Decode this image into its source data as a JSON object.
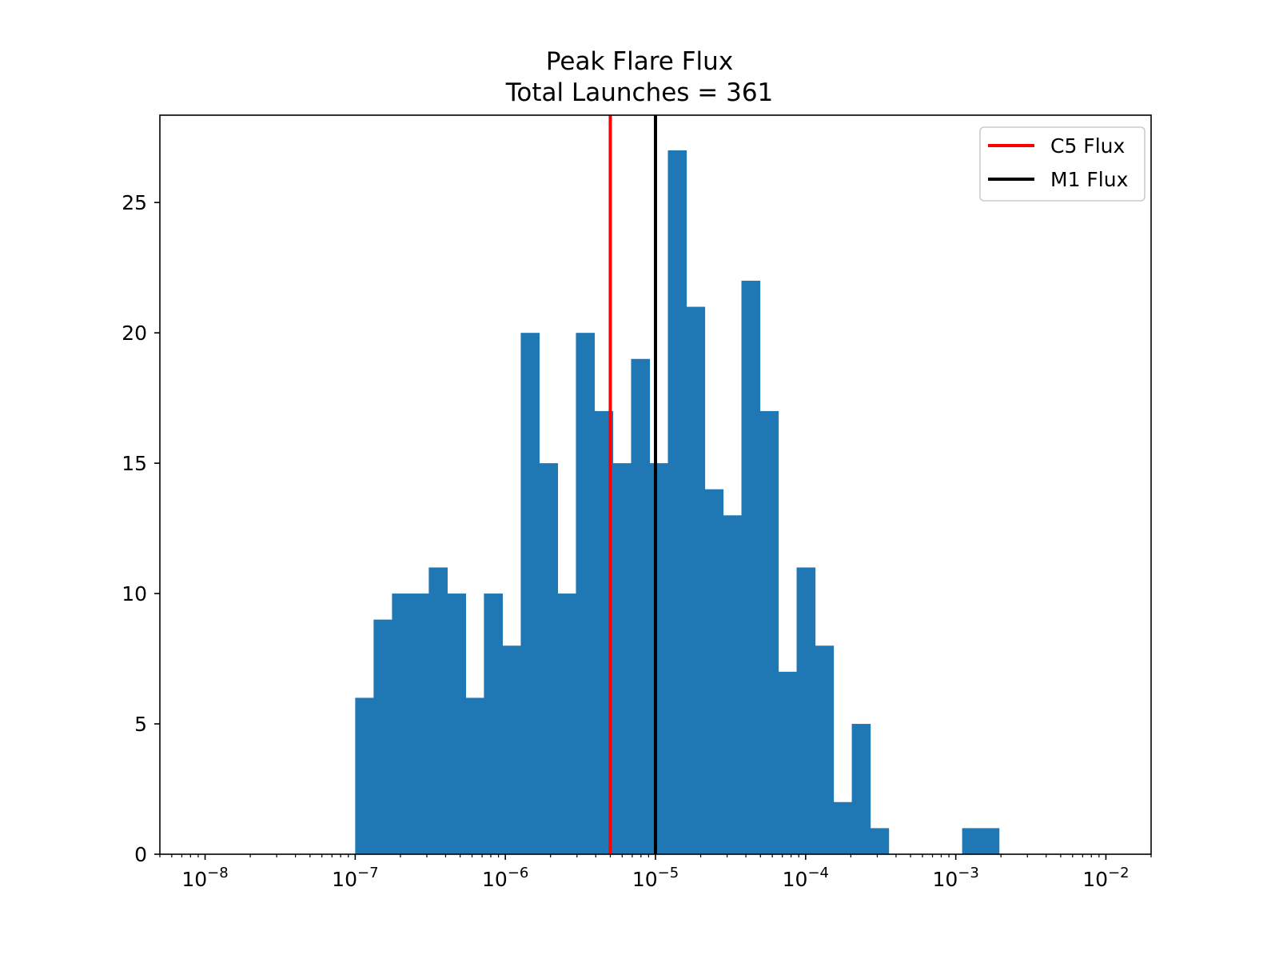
{
  "chart_data": {
    "type": "bar",
    "title": "Peak Flare Flux",
    "subtitle": "Total Launches = 361",
    "xlabel": "",
    "ylabel": "",
    "x_scale": "log",
    "xlim": [
      5e-09,
      0.02
    ],
    "ylim": [
      0,
      28.35
    ],
    "bar_color": "#1f77b4",
    "bin_edges_log10": [
      -7.0,
      -6.8775,
      -6.755,
      -6.6325,
      -6.51,
      -6.3875,
      -6.265,
      -6.1425,
      -6.02,
      -5.8975,
      -5.775,
      -5.6525,
      -5.53,
      -5.4075,
      -5.285,
      -5.1625,
      -5.04,
      -4.9175,
      -4.795,
      -4.6725,
      -4.55,
      -4.4275,
      -4.305,
      -4.1825,
      -4.06,
      -3.9375,
      -3.815,
      -3.6925,
      -3.57,
      -3.4475,
      -3.325,
      -3.2025,
      -3.08,
      -2.9575,
      -2.835,
      -2.7125
    ],
    "counts": [
      6,
      9,
      10,
      10,
      11,
      10,
      6,
      10,
      8,
      20,
      15,
      10,
      20,
      17,
      15,
      19,
      15,
      27,
      21,
      14,
      13,
      22,
      17,
      7,
      11,
      8,
      2,
      5,
      1,
      0,
      0,
      0,
      0,
      1,
      1
    ],
    "x_ticks": [
      {
        "value": 1e-08,
        "base": "10",
        "exp": "−8"
      },
      {
        "value": 1e-07,
        "base": "10",
        "exp": "−7"
      },
      {
        "value": 1e-06,
        "base": "10",
        "exp": "−6"
      },
      {
        "value": 1e-05,
        "base": "10",
        "exp": "−5"
      },
      {
        "value": 0.0001,
        "base": "10",
        "exp": "−4"
      },
      {
        "value": 0.001,
        "base": "10",
        "exp": "−3"
      },
      {
        "value": 0.01,
        "base": "10",
        "exp": "−2"
      }
    ],
    "y_ticks": [
      {
        "value": 0,
        "label": "0"
      },
      {
        "value": 5,
        "label": "5"
      },
      {
        "value": 10,
        "label": "10"
      },
      {
        "value": 15,
        "label": "15"
      },
      {
        "value": 20,
        "label": "20"
      },
      {
        "value": 25,
        "label": "25"
      }
    ],
    "vlines": [
      {
        "name": "C5 Flux",
        "x": 5e-06,
        "color": "#ff0000"
      },
      {
        "name": "M1 Flux",
        "x": 1e-05,
        "color": "#000000"
      }
    ],
    "legend_position": "top-right",
    "grid": false
  }
}
